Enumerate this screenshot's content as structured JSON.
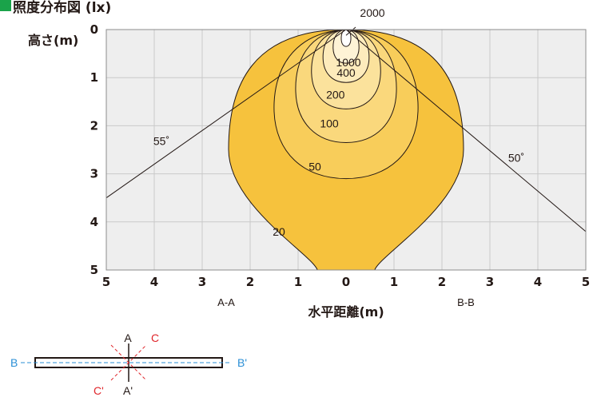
{
  "title": "照度分布図 (lx)",
  "colors": {
    "title_mark": "#1aa34a",
    "plot_bg": "#eeeeee",
    "grid": "#c9c9c9",
    "contour_stroke": "#231815",
    "blue_line": "#2b8fd6",
    "red_line": "#e0262b",
    "contour_fills": [
      "#f6c23d",
      "#f8cd5a",
      "#fad87c",
      "#fbe29c",
      "#fdebbc",
      "#fef3d6",
      "#ffffff"
    ]
  },
  "chart_data": {
    "type": "isolux diagram",
    "y_label": "高さ(m)",
    "x_label": "水平距離(m)",
    "x_ticks": [
      "5",
      "4",
      "3",
      "2",
      "1",
      "0",
      "1",
      "2",
      "3",
      "4",
      "5"
    ],
    "y_ticks": [
      "0",
      "1",
      "2",
      "3",
      "4",
      "5"
    ],
    "x_range": [
      -5,
      5
    ],
    "y_range": [
      0,
      5
    ],
    "section_labels": {
      "left": "A-A",
      "right": "B-B"
    },
    "contours": [
      {
        "lux": "20",
        "value": 20,
        "half_width": 2.45,
        "depth": 5.0,
        "label_x": -1.4,
        "label_y": 4.2
      },
      {
        "lux": "50",
        "value": 50,
        "half_width": 1.5,
        "depth": 3.1,
        "label_x": -0.65,
        "label_y": 2.85
      },
      {
        "lux": "100",
        "value": 100,
        "half_width": 1.05,
        "depth": 2.35,
        "label_x": -0.35,
        "label_y": 1.95
      },
      {
        "lux": "200",
        "value": 200,
        "half_width": 0.72,
        "depth": 1.65,
        "label_x": -0.22,
        "label_y": 1.35
      },
      {
        "lux": "400",
        "value": 400,
        "half_width": 0.48,
        "depth": 1.1,
        "label_x": 0.0,
        "label_y": 0.9
      },
      {
        "lux": "1000",
        "value": 1000,
        "half_width": 0.27,
        "depth": 0.7,
        "label_x": 0.05,
        "label_y": 0.68
      },
      {
        "lux": "2000",
        "value": 2000,
        "half_width": 0.1,
        "depth": 0.35,
        "label_x": 0.55,
        "label_y": -0.35
      }
    ],
    "beam_angles": [
      {
        "label": "55˚",
        "side": "left",
        "x_at_bottom": -5.0,
        "y_at_edge": 3.5,
        "label_x": -3.85,
        "label_y": 2.4
      },
      {
        "label": "50˚",
        "side": "right",
        "x_at_bottom": 5.0,
        "y_at_edge": 4.2,
        "label_x": 3.55,
        "label_y": 2.75
      }
    ]
  },
  "key": {
    "labels": {
      "A": "A",
      "A_prime": "A'",
      "B": "B",
      "B_prime": "B'",
      "C": "C",
      "C_prime": "C'"
    }
  }
}
